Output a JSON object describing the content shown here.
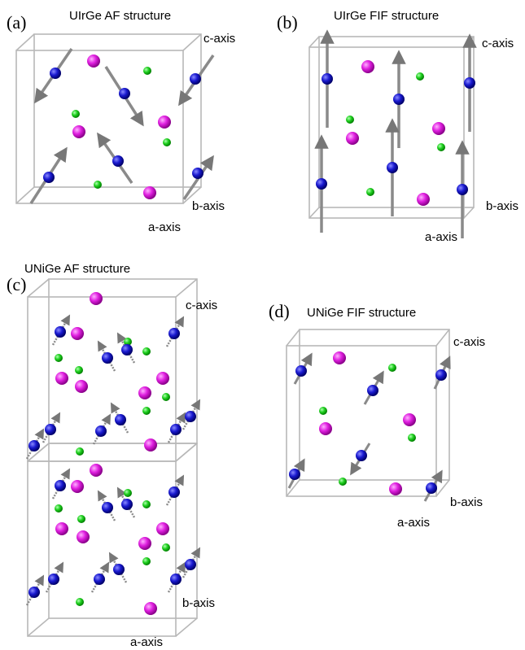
{
  "panels": [
    {
      "label": "(a)",
      "title": "UIrGe AF structure",
      "c_axis": "c-axis",
      "b_axis": "b-axis",
      "a_axis": "a-axis"
    },
    {
      "label": "(b)",
      "title": "UIrGe FIF structure",
      "c_axis": "c-axis",
      "b_axis": "b-axis",
      "a_axis": "a-axis"
    },
    {
      "label": "(c)",
      "title": "UNiGe AF structure",
      "c_axis": "c-axis",
      "b_axis": "b-axis",
      "a_axis": "a-axis"
    },
    {
      "label": "(d)",
      "title": "UNiGe FIF structure",
      "c_axis": "c-axis",
      "b_axis": "b-axis",
      "a_axis": "a-axis"
    }
  ]
}
